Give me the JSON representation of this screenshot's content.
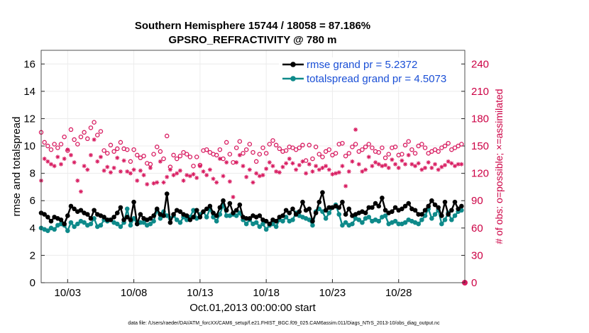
{
  "chart_data": {
    "type": "line",
    "title": "Southern Hemisphere 15744 / 18058 = 87.186%",
    "subtitle": "GPSRO_REFRACTIVITY @ 780 m",
    "xlabel": "Oct.01,2013 00:00:00 start",
    "ylabel": "rmse and totalspread",
    "y2label": "# of obs: o=possible; ×=assimilated",
    "footer": "data file: /Users/raeder/DAI/ATM_forcXX/CAM6_setup/f.e21.FHIST_BGC.f09_025.CAM6assim.011/Diags_NTrS_2013-10/obs_diag_output.nc",
    "xlim": [
      1,
      33
    ],
    "ylim": [
      0,
      17
    ],
    "y2lim": [
      0,
      255
    ],
    "grid": true,
    "x_tick_values": [
      3,
      8,
      13,
      18,
      23,
      28
    ],
    "x_tick_labels": [
      "10/03",
      "10/08",
      "10/13",
      "10/18",
      "10/23",
      "10/28"
    ],
    "y_ticks": [
      "0",
      "2",
      "4",
      "6",
      "8",
      "10",
      "12",
      "14",
      "16"
    ],
    "y2_ticks": [
      "0",
      "30",
      "60",
      "90",
      "120",
      "150",
      "180",
      "210",
      "240"
    ],
    "legend_position": "top-right",
    "series": [
      {
        "name": "rmse grand pr = 5.2372",
        "color": "#000000",
        "axis": "left",
        "x": [
          1.0,
          1.25,
          1.5,
          1.75,
          2.0,
          2.25,
          2.5,
          2.75,
          3.0,
          3.25,
          3.5,
          3.75,
          4.0,
          4.25,
          4.5,
          4.75,
          5.0,
          5.25,
          5.5,
          5.75,
          6.0,
          6.25,
          6.5,
          6.75,
          7.0,
          7.25,
          7.5,
          7.75,
          8.0,
          8.25,
          8.5,
          8.75,
          9.0,
          9.25,
          9.5,
          9.75,
          10.0,
          10.25,
          10.5,
          10.75,
          11.0,
          11.25,
          11.5,
          11.75,
          12.0,
          12.25,
          12.5,
          12.75,
          13.0,
          13.25,
          13.5,
          13.75,
          14.0,
          14.25,
          14.5,
          14.75,
          15.0,
          15.25,
          15.5,
          15.75,
          16.0,
          16.25,
          16.5,
          16.75,
          17.0,
          17.25,
          17.5,
          17.75,
          18.0,
          18.25,
          18.5,
          18.75,
          19.0,
          19.25,
          19.5,
          19.75,
          20.0,
          20.25,
          20.5,
          20.75,
          21.0,
          21.25,
          21.5,
          21.75,
          22.0,
          22.25,
          22.5,
          22.75,
          23.0,
          23.25,
          23.5,
          23.75,
          24.0,
          24.25,
          24.5,
          24.75,
          25.0,
          25.25,
          25.5,
          25.75,
          26.0,
          26.25,
          26.5,
          26.75,
          27.0,
          27.25,
          27.5,
          27.75,
          28.0,
          28.25,
          28.5,
          28.75,
          29.0,
          29.25,
          29.5,
          29.75,
          30.0,
          30.25,
          30.5,
          30.75,
          31.0,
          31.25,
          31.5,
          31.75,
          32.0,
          32.25,
          32.5,
          32.75
        ],
        "values": [
          5.1,
          5.0,
          4.8,
          4.5,
          4.8,
          4.7,
          4.6,
          4.3,
          4.9,
          5.6,
          5.4,
          5.2,
          5.3,
          5.1,
          5.0,
          4.7,
          5.3,
          5.0,
          4.9,
          4.8,
          4.6,
          4.6,
          4.8,
          5.1,
          5.5,
          4.6,
          4.8,
          4.6,
          5.9,
          4.3,
          5.0,
          4.7,
          4.6,
          4.7,
          4.9,
          5.4,
          5.0,
          4.9,
          6.5,
          4.4,
          5.0,
          5.3,
          5.2,
          5.0,
          4.9,
          4.6,
          4.8,
          5.3,
          4.8,
          5.2,
          5.4,
          5.6,
          5.1,
          4.9,
          5.5,
          6.0,
          5.3,
          5.8,
          5.1,
          5.3,
          5.7,
          4.8,
          4.7,
          4.7,
          4.9,
          4.8,
          4.9,
          4.6,
          4.5,
          4.3,
          4.6,
          4.5,
          4.8,
          4.9,
          5.3,
          5.1,
          5.4,
          5.0,
          5.2,
          5.9,
          5.3,
          5.4,
          4.5,
          5.1,
          5.9,
          6.6,
          5.3,
          5.5,
          5.5,
          5.6,
          5.5,
          5.9,
          5.0,
          5.4,
          4.9,
          5.0,
          5.1,
          5.2,
          5.1,
          5.5,
          5.5,
          5.8,
          5.6,
          6.2,
          5.3,
          5.1,
          5.2,
          5.5,
          5.3,
          5.4,
          5.6,
          5.8,
          5.4,
          5.3,
          5.0,
          5.0,
          5.3,
          5.6,
          6.0,
          5.7,
          5.5,
          4.9,
          5.9,
          5.0,
          5.3,
          5.9,
          5.4,
          5.6
        ],
        "marker": "filled-circle"
      },
      {
        "name": "totalspread grand pr = 4.5073",
        "color": "#0e8a8a",
        "axis": "left",
        "x": [
          1.0,
          1.25,
          1.5,
          1.75,
          2.0,
          2.25,
          2.5,
          2.75,
          3.0,
          3.25,
          3.5,
          3.75,
          4.0,
          4.25,
          4.5,
          4.75,
          5.0,
          5.25,
          5.5,
          5.75,
          6.0,
          6.25,
          6.5,
          6.75,
          7.0,
          7.25,
          7.5,
          7.75,
          8.0,
          8.25,
          8.5,
          8.75,
          9.0,
          9.25,
          9.5,
          9.75,
          10.0,
          10.25,
          10.5,
          10.75,
          11.0,
          11.25,
          11.5,
          11.75,
          12.0,
          12.25,
          12.5,
          12.75,
          13.0,
          13.25,
          13.5,
          13.75,
          14.0,
          14.25,
          14.5,
          14.75,
          15.0,
          15.25,
          15.5,
          15.75,
          16.0,
          16.25,
          16.5,
          16.75,
          17.0,
          17.25,
          17.5,
          17.75,
          18.0,
          18.25,
          18.5,
          18.75,
          19.0,
          19.25,
          19.5,
          19.75,
          20.0,
          20.25,
          20.5,
          20.75,
          21.0,
          21.25,
          21.5,
          21.75,
          22.0,
          22.25,
          22.5,
          22.75,
          23.0,
          23.25,
          23.5,
          23.75,
          24.0,
          24.25,
          24.5,
          24.75,
          25.0,
          25.25,
          25.5,
          25.75,
          26.0,
          26.25,
          26.5,
          26.75,
          27.0,
          27.25,
          27.5,
          27.75,
          28.0,
          28.25,
          28.5,
          28.75,
          29.0,
          29.25,
          29.5,
          29.75,
          30.0,
          30.25,
          30.5,
          30.75,
          31.0,
          31.25,
          31.5,
          31.75,
          32.0,
          32.25,
          32.5,
          32.75
        ],
        "values": [
          4.0,
          3.9,
          3.8,
          4.0,
          3.9,
          4.2,
          4.3,
          4.2,
          3.8,
          4.4,
          4.1,
          4.3,
          4.5,
          4.4,
          4.2,
          4.3,
          4.7,
          4.1,
          4.2,
          4.6,
          4.5,
          4.6,
          4.4,
          4.3,
          4.1,
          4.4,
          5.4,
          4.2,
          4.7,
          4.3,
          4.4,
          4.4,
          4.2,
          4.3,
          4.5,
          5.3,
          4.7,
          5.2,
          4.9,
          4.7,
          4.9,
          4.6,
          4.4,
          4.8,
          4.6,
          4.8,
          5.3,
          4.7,
          5.0,
          5.2,
          4.8,
          5.4,
          4.8,
          4.5,
          5.0,
          5.7,
          4.9,
          4.9,
          5.0,
          4.9,
          5.1,
          4.6,
          4.3,
          4.6,
          4.3,
          4.4,
          4.1,
          4.3,
          3.9,
          4.2,
          4.3,
          4.1,
          4.6,
          4.5,
          4.8,
          4.5,
          4.6,
          5.1,
          4.9,
          4.8,
          4.7,
          4.6,
          4.2,
          5.2,
          5.4,
          5.2,
          4.7,
          5.1,
          5.5,
          5.7,
          5.0,
          4.2,
          4.4,
          4.2,
          4.3,
          4.7,
          4.6,
          4.4,
          4.7,
          4.8,
          4.5,
          4.6,
          4.5,
          4.8,
          4.9,
          4.3,
          4.4,
          4.5,
          4.3,
          4.3,
          4.4,
          4.6,
          4.5,
          4.4,
          4.3,
          4.6,
          4.9,
          5.4,
          4.7,
          5.0,
          5.3,
          4.3,
          4.6,
          5.1,
          4.6,
          4.9,
          5.2,
          5.3
        ],
        "marker": "filled-circle"
      },
      {
        "name": "possible obs",
        "color": "#d81b60",
        "axis": "right",
        "marker": "circle",
        "x": [
          1.0,
          1.25,
          1.5,
          1.75,
          2.0,
          2.25,
          2.5,
          2.75,
          3.0,
          3.25,
          3.5,
          3.75,
          4.0,
          4.25,
          4.5,
          4.75,
          5.0,
          5.25,
          5.5,
          5.75,
          6.0,
          6.25,
          6.5,
          6.75,
          7.0,
          7.25,
          7.5,
          7.75,
          8.0,
          8.25,
          8.5,
          8.75,
          9.0,
          9.25,
          9.5,
          9.75,
          10.0,
          10.25,
          10.5,
          10.75,
          11.0,
          11.25,
          11.5,
          11.75,
          12.0,
          12.25,
          12.5,
          12.75,
          13.0,
          13.25,
          13.5,
          13.75,
          14.0,
          14.25,
          14.5,
          14.75,
          15.0,
          15.25,
          15.5,
          15.75,
          16.0,
          16.25,
          16.5,
          16.75,
          17.0,
          17.25,
          17.5,
          17.75,
          18.0,
          18.25,
          18.5,
          18.75,
          19.0,
          19.25,
          19.5,
          19.75,
          20.0,
          20.25,
          20.5,
          20.75,
          21.0,
          21.25,
          21.5,
          21.75,
          22.0,
          22.25,
          22.5,
          22.75,
          23.0,
          23.25,
          23.5,
          23.75,
          24.0,
          24.25,
          24.5,
          24.75,
          25.0,
          25.25,
          25.5,
          25.75,
          26.0,
          26.25,
          26.5,
          26.75,
          27.0,
          27.25,
          27.5,
          27.75,
          28.0,
          28.25,
          28.5,
          28.75,
          29.0,
          29.25,
          29.5,
          29.75,
          30.0,
          30.25,
          30.5,
          30.75,
          31.0,
          31.25,
          31.5,
          31.75,
          32.0,
          32.25,
          32.5,
          32.75
        ],
        "values": [
          165,
          154,
          150,
          146,
          152,
          148,
          152,
          160,
          145,
          168,
          157,
          152,
          160,
          165,
          158,
          170,
          176,
          162,
          166,
          145,
          142,
          151,
          144,
          147,
          154,
          147,
          146,
          133,
          146,
          140,
          137,
          139,
          131,
          130,
          141,
          149,
          144,
          136,
          161,
          127,
          140,
          136,
          139,
          143,
          141,
          138,
          128,
          138,
          129,
          145,
          146,
          143,
          141,
          140,
          146,
          136,
          154,
          141,
          132,
          148,
          155,
          142,
          146,
          152,
          143,
          133,
          141,
          148,
          142,
          152,
          156,
          151,
          147,
          144,
          145,
          149,
          148,
          146,
          148,
          151,
          134,
          151,
          136,
          149,
          141,
          138,
          144,
          146,
          140,
          142,
          152,
          153,
          139,
          142,
          149,
          152,
          144,
          146,
          149,
          152,
          148,
          144,
          143,
          148,
          137,
          141,
          148,
          149,
          140,
          141,
          151,
          155,
          146,
          142,
          150,
          152,
          148,
          142,
          144,
          146,
          144,
          148,
          150,
          153,
          146,
          148,
          150,
          152
        ]
      },
      {
        "name": "assimilated obs",
        "color": "#d81b60",
        "axis": "right",
        "marker": "asterisk",
        "x": [
          1.0,
          1.25,
          1.5,
          1.75,
          2.0,
          2.25,
          2.5,
          2.75,
          3.0,
          3.25,
          3.5,
          3.75,
          4.0,
          4.25,
          4.5,
          4.75,
          5.0,
          5.25,
          5.5,
          5.75,
          6.0,
          6.25,
          6.5,
          6.75,
          7.0,
          7.25,
          7.5,
          7.75,
          8.0,
          8.25,
          8.5,
          8.75,
          9.0,
          9.25,
          9.5,
          9.75,
          10.0,
          10.25,
          10.5,
          10.75,
          11.0,
          11.25,
          11.5,
          11.75,
          12.0,
          12.25,
          12.5,
          12.75,
          13.0,
          13.25,
          13.5,
          13.75,
          14.0,
          14.25,
          14.5,
          14.75,
          15.0,
          15.25,
          15.5,
          15.75,
          16.0,
          16.25,
          16.5,
          16.75,
          17.0,
          17.25,
          17.5,
          17.75,
          18.0,
          18.25,
          18.5,
          18.75,
          19.0,
          19.25,
          19.5,
          19.75,
          20.0,
          20.25,
          20.5,
          20.75,
          21.0,
          21.25,
          21.5,
          21.75,
          22.0,
          22.25,
          22.5,
          22.75,
          23.0,
          23.25,
          23.5,
          23.75,
          24.0,
          24.25,
          24.5,
          24.75,
          25.0,
          25.25,
          25.5,
          25.75,
          26.0,
          26.25,
          26.5,
          26.75,
          27.0,
          27.25,
          27.5,
          27.75,
          28.0,
          28.25,
          28.5,
          28.75,
          29.0,
          29.25,
          29.5,
          29.75,
          30.0,
          30.25,
          30.5,
          30.75,
          31.0,
          31.25,
          31.5,
          31.75,
          32.0,
          32.25,
          32.5,
          32.75
        ],
        "values": [
          112,
          136,
          133,
          130,
          128,
          138,
          130,
          136,
          146,
          140,
          132,
          112,
          100,
          128,
          124,
          140,
          157,
          133,
          138,
          123,
          127,
          121,
          126,
          137,
          122,
          134,
          122,
          120,
          124,
          112,
          123,
          118,
          108,
          126,
          109,
          110,
          133,
          110,
          116,
          124,
          118,
          120,
          123,
          112,
          118,
          117,
          119,
          115,
          128,
          122,
          118,
          124,
          114,
          110,
          136,
          117,
          132,
          111,
          94,
          132,
          140,
          128,
          116,
          124,
          110,
          120,
          117,
          118,
          125,
          132,
          128,
          122,
          121,
          127,
          131,
          136,
          131,
          124,
          129,
          133,
          120,
          130,
          122,
          128,
          124,
          126,
          128,
          124,
          119,
          120,
          121,
          128,
          106,
          122,
          133,
          168,
          130,
          122,
          124,
          138,
          128,
          132,
          130,
          128,
          129,
          126,
          135,
          130,
          126,
          134,
          130,
          140,
          130,
          128,
          131,
          124,
          126,
          132,
          126,
          130,
          124,
          127,
          129,
          133,
          131,
          128,
          130,
          130
        ]
      }
    ]
  }
}
